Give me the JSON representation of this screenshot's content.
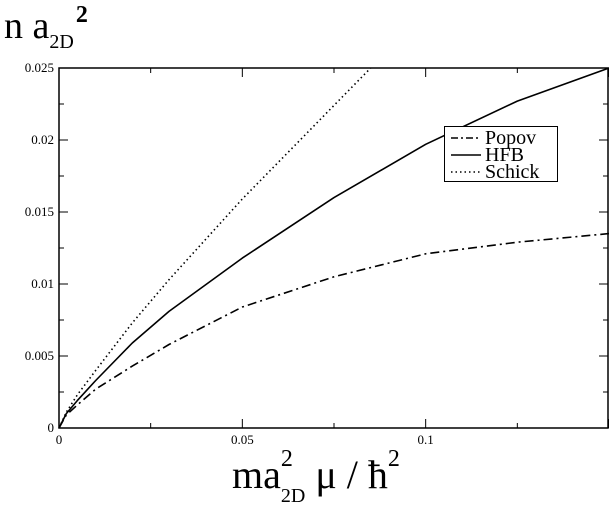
{
  "chart_data": {
    "type": "line",
    "ylabel": {
      "text": "n a",
      "sub": "2D",
      "sup": "2"
    },
    "xlabel": {
      "prefix": "ma",
      "sup": "2",
      "sub": "2D",
      "suffix": " μ / ħ",
      "sup2": "2"
    },
    "xlim": [
      0,
      0.15
    ],
    "ylim": [
      0,
      0.025
    ],
    "x_ticks": [
      0,
      0.05,
      0.1
    ],
    "x_tick_labels": [
      "0",
      "0.05",
      "0.1"
    ],
    "y_ticks": [
      0,
      0.005,
      0.01,
      0.015,
      0.02,
      0.025
    ],
    "y_tick_labels": [
      "0",
      "0.005",
      "0.01",
      "0.015",
      "0.02",
      "0.025"
    ],
    "legend_position": "top-right",
    "series": [
      {
        "name": "Popov",
        "style": "dashdot",
        "x": [
          0,
          0.002,
          0.005,
          0.01,
          0.02,
          0.03,
          0.05,
          0.075,
          0.1,
          0.125,
          0.15
        ],
        "y": [
          0,
          0.0009,
          0.0016,
          0.0027,
          0.0043,
          0.0058,
          0.0084,
          0.0105,
          0.0121,
          0.0129,
          0.0135
        ]
      },
      {
        "name": "HFB",
        "style": "solid",
        "x": [
          0,
          0.002,
          0.005,
          0.01,
          0.02,
          0.03,
          0.05,
          0.075,
          0.1,
          0.125,
          0.15
        ],
        "y": [
          0,
          0.001,
          0.0019,
          0.0033,
          0.0059,
          0.0081,
          0.0118,
          0.016,
          0.0197,
          0.0227,
          0.025
        ]
      },
      {
        "name": "Schick",
        "style": "dotted",
        "x": [
          0,
          0.002,
          0.005,
          0.01,
          0.02,
          0.03,
          0.05,
          0.065,
          0.075,
          0.085
        ],
        "y": [
          0,
          0.0011,
          0.0023,
          0.004,
          0.0073,
          0.0103,
          0.0159,
          0.0198,
          0.0224,
          0.025
        ]
      }
    ]
  }
}
